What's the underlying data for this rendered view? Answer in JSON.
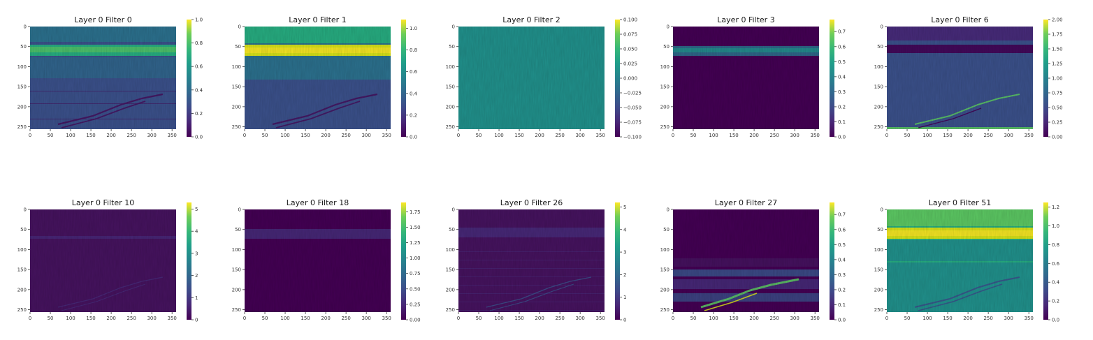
{
  "chart_data": [
    {
      "type": "heatmap",
      "title": "Layer 0 Filter 0",
      "xticks": [
        "0",
        "50",
        "100",
        "150",
        "200",
        "250",
        "300",
        "350"
      ],
      "yticks": [
        "0",
        "50",
        "100",
        "150",
        "200",
        "250"
      ],
      "colorbar_ticks": [
        "0.0",
        "0.2",
        "0.4",
        "0.6",
        "0.8",
        "1.0"
      ],
      "xlim": [
        0,
        360
      ],
      "ylim": [
        256,
        0
      ],
      "colorbar_range": [
        0.0,
        1.0
      ],
      "colormap": "viridis",
      "pattern": "sky-band-mid"
    },
    {
      "type": "heatmap",
      "title": "Layer 0 Filter 1",
      "xticks": [
        "0",
        "50",
        "100",
        "150",
        "200",
        "250",
        "300",
        "350"
      ],
      "yticks": [
        "0",
        "50",
        "100",
        "150",
        "200",
        "250"
      ],
      "colorbar_ticks": [
        "0.0",
        "0.2",
        "0.4",
        "0.6",
        "0.8",
        "1.0"
      ],
      "xlim": [
        0,
        360
      ],
      "ylim": [
        256,
        0
      ],
      "colorbar_range": [
        0.0,
        1.08
      ],
      "colormap": "viridis",
      "pattern": "sky-band-bright"
    },
    {
      "type": "heatmap",
      "title": "Layer 0 Filter 2",
      "xticks": [
        "0",
        "50",
        "100",
        "150",
        "200",
        "250",
        "300",
        "350"
      ],
      "yticks": [
        "0",
        "50",
        "100",
        "150",
        "200",
        "250"
      ],
      "colorbar_ticks": [
        "0.100",
        "0.075",
        "0.050",
        "0.025",
        "0.000",
        "−0.025",
        "−0.050",
        "−0.075",
        "−0.100"
      ],
      "xlim": [
        0,
        360
      ],
      "ylim": [
        256,
        0
      ],
      "colorbar_range": [
        -0.1,
        0.1
      ],
      "colormap": "viridis",
      "pattern": "flat"
    },
    {
      "type": "heatmap",
      "title": "Layer 0 Filter 3",
      "xticks": [
        "0",
        "50",
        "100",
        "150",
        "200",
        "250",
        "300",
        "350"
      ],
      "yticks": [
        "0",
        "50",
        "100",
        "150",
        "200",
        "250"
      ],
      "colorbar_ticks": [
        "0.0",
        "0.1",
        "0.2",
        "0.3",
        "0.4",
        "0.5",
        "0.6",
        "0.7"
      ],
      "xlim": [
        0,
        360
      ],
      "ylim": [
        256,
        0
      ],
      "colorbar_range": [
        0.0,
        0.78
      ],
      "colormap": "viridis",
      "pattern": "dark-band"
    },
    {
      "type": "heatmap",
      "title": "Layer 0 Filter 6",
      "xticks": [
        "0",
        "50",
        "100",
        "150",
        "200",
        "250",
        "300",
        "350"
      ],
      "yticks": [
        "0",
        "50",
        "100",
        "150",
        "200",
        "250"
      ],
      "colorbar_ticks": [
        "0.00",
        "0.25",
        "0.50",
        "0.75",
        "1.00",
        "1.25",
        "1.50",
        "1.75",
        "2.00"
      ],
      "xlim": [
        0,
        360
      ],
      "ylim": [
        256,
        0
      ],
      "colorbar_range": [
        0.0,
        2.0
      ],
      "colormap": "viridis",
      "pattern": "edge-mid"
    },
    {
      "type": "heatmap",
      "title": "Layer 0 Filter 10",
      "xticks": [
        "0",
        "50",
        "100",
        "150",
        "200",
        "250",
        "300",
        "350"
      ],
      "yticks": [
        "0",
        "50",
        "100",
        "150",
        "200",
        "250"
      ],
      "colorbar_ticks": [
        "0",
        "1",
        "2",
        "3",
        "4",
        "5"
      ],
      "xlim": [
        0,
        360
      ],
      "ylim": [
        256,
        0
      ],
      "colorbar_range": [
        0,
        5.3
      ],
      "colormap": "viridis",
      "pattern": "dark-faint"
    },
    {
      "type": "heatmap",
      "title": "Layer 0 Filter 18",
      "xticks": [
        "0",
        "50",
        "100",
        "150",
        "200",
        "250",
        "300",
        "350"
      ],
      "yticks": [
        "0",
        "50",
        "100",
        "150",
        "200",
        "250"
      ],
      "colorbar_ticks": [
        "0.00",
        "0.25",
        "0.50",
        "0.75",
        "1.00",
        "1.25",
        "1.50",
        "1.75"
      ],
      "xlim": [
        0,
        360
      ],
      "ylim": [
        256,
        0
      ],
      "colorbar_range": [
        0.0,
        1.9
      ],
      "colormap": "viridis",
      "pattern": "dark-band-faint"
    },
    {
      "type": "heatmap",
      "title": "Layer 0 Filter 26",
      "xticks": [
        "0",
        "50",
        "100",
        "150",
        "200",
        "250",
        "300",
        "350"
      ],
      "yticks": [
        "0",
        "50",
        "100",
        "150",
        "200",
        "250"
      ],
      "colorbar_ticks": [
        "0",
        "1",
        "2",
        "3",
        "4",
        "5"
      ],
      "xlim": [
        0,
        360
      ],
      "ylim": [
        256,
        0
      ],
      "colorbar_range": [
        0,
        5.2
      ],
      "colormap": "viridis",
      "pattern": "edge-dark"
    },
    {
      "type": "heatmap",
      "title": "Layer 0 Filter 27",
      "xticks": [
        "0",
        "50",
        "100",
        "150",
        "200",
        "250",
        "300",
        "350"
      ],
      "yticks": [
        "0",
        "50",
        "100",
        "150",
        "200",
        "250"
      ],
      "colorbar_ticks": [
        "0.0",
        "0.1",
        "0.2",
        "0.3",
        "0.4",
        "0.5",
        "0.6",
        "0.7"
      ],
      "xlim": [
        0,
        360
      ],
      "ylim": [
        256,
        0
      ],
      "colorbar_range": [
        0.0,
        0.78
      ],
      "colormap": "viridis",
      "pattern": "lower-streaks"
    },
    {
      "type": "heatmap",
      "title": "Layer 0 Filter 51",
      "xticks": [
        "0",
        "50",
        "100",
        "150",
        "200",
        "250",
        "300",
        "350"
      ],
      "yticks": [
        "0",
        "50",
        "100",
        "150",
        "200",
        "250"
      ],
      "colorbar_ticks": [
        "0.0",
        "0.2",
        "0.4",
        "0.6",
        "0.8",
        "1.0",
        "1.2"
      ],
      "xlim": [
        0,
        360
      ],
      "ylim": [
        256,
        0
      ],
      "colorbar_range": [
        0.0,
        1.25
      ],
      "colormap": "viridis",
      "pattern": "bright-wide"
    }
  ]
}
